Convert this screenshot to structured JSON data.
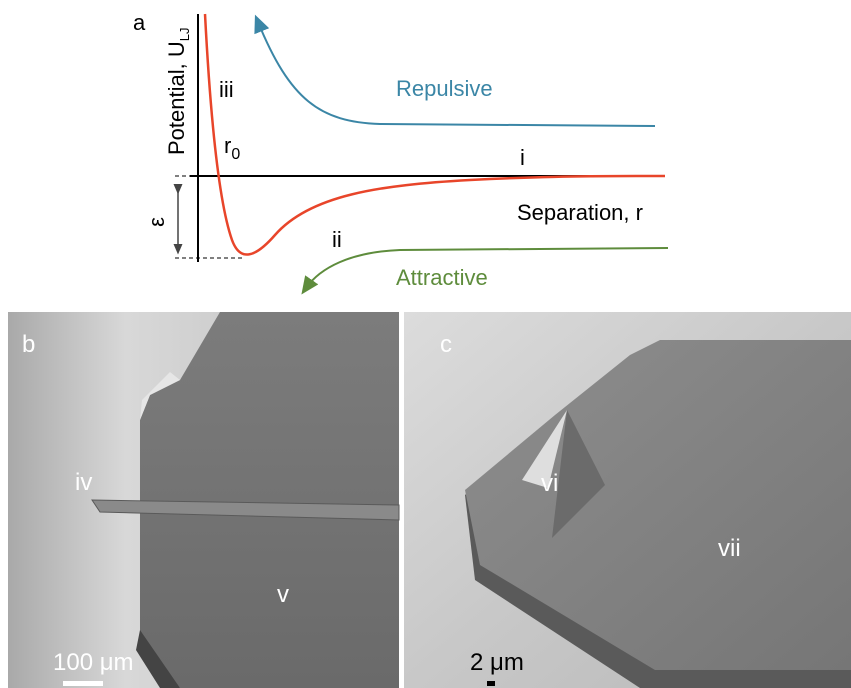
{
  "panel_a": {
    "label": "a",
    "y_axis_label": "Potential, U",
    "y_axis_subscript": "LJ",
    "x_axis_label": "Separation, r",
    "r0": "r",
    "r0_subscript": "0",
    "epsilon": "ε",
    "region_labels": [
      "i",
      "ii",
      "iii"
    ],
    "repulsive": "Repulsive",
    "attractive": "Attractive"
  },
  "panel_b": {
    "label": "b",
    "labels": [
      "iv",
      "v"
    ],
    "scale_bar": "100 μm"
  },
  "panel_c": {
    "label": "c",
    "labels": [
      "vi",
      "vii"
    ],
    "scale_bar": "2 μm"
  }
}
